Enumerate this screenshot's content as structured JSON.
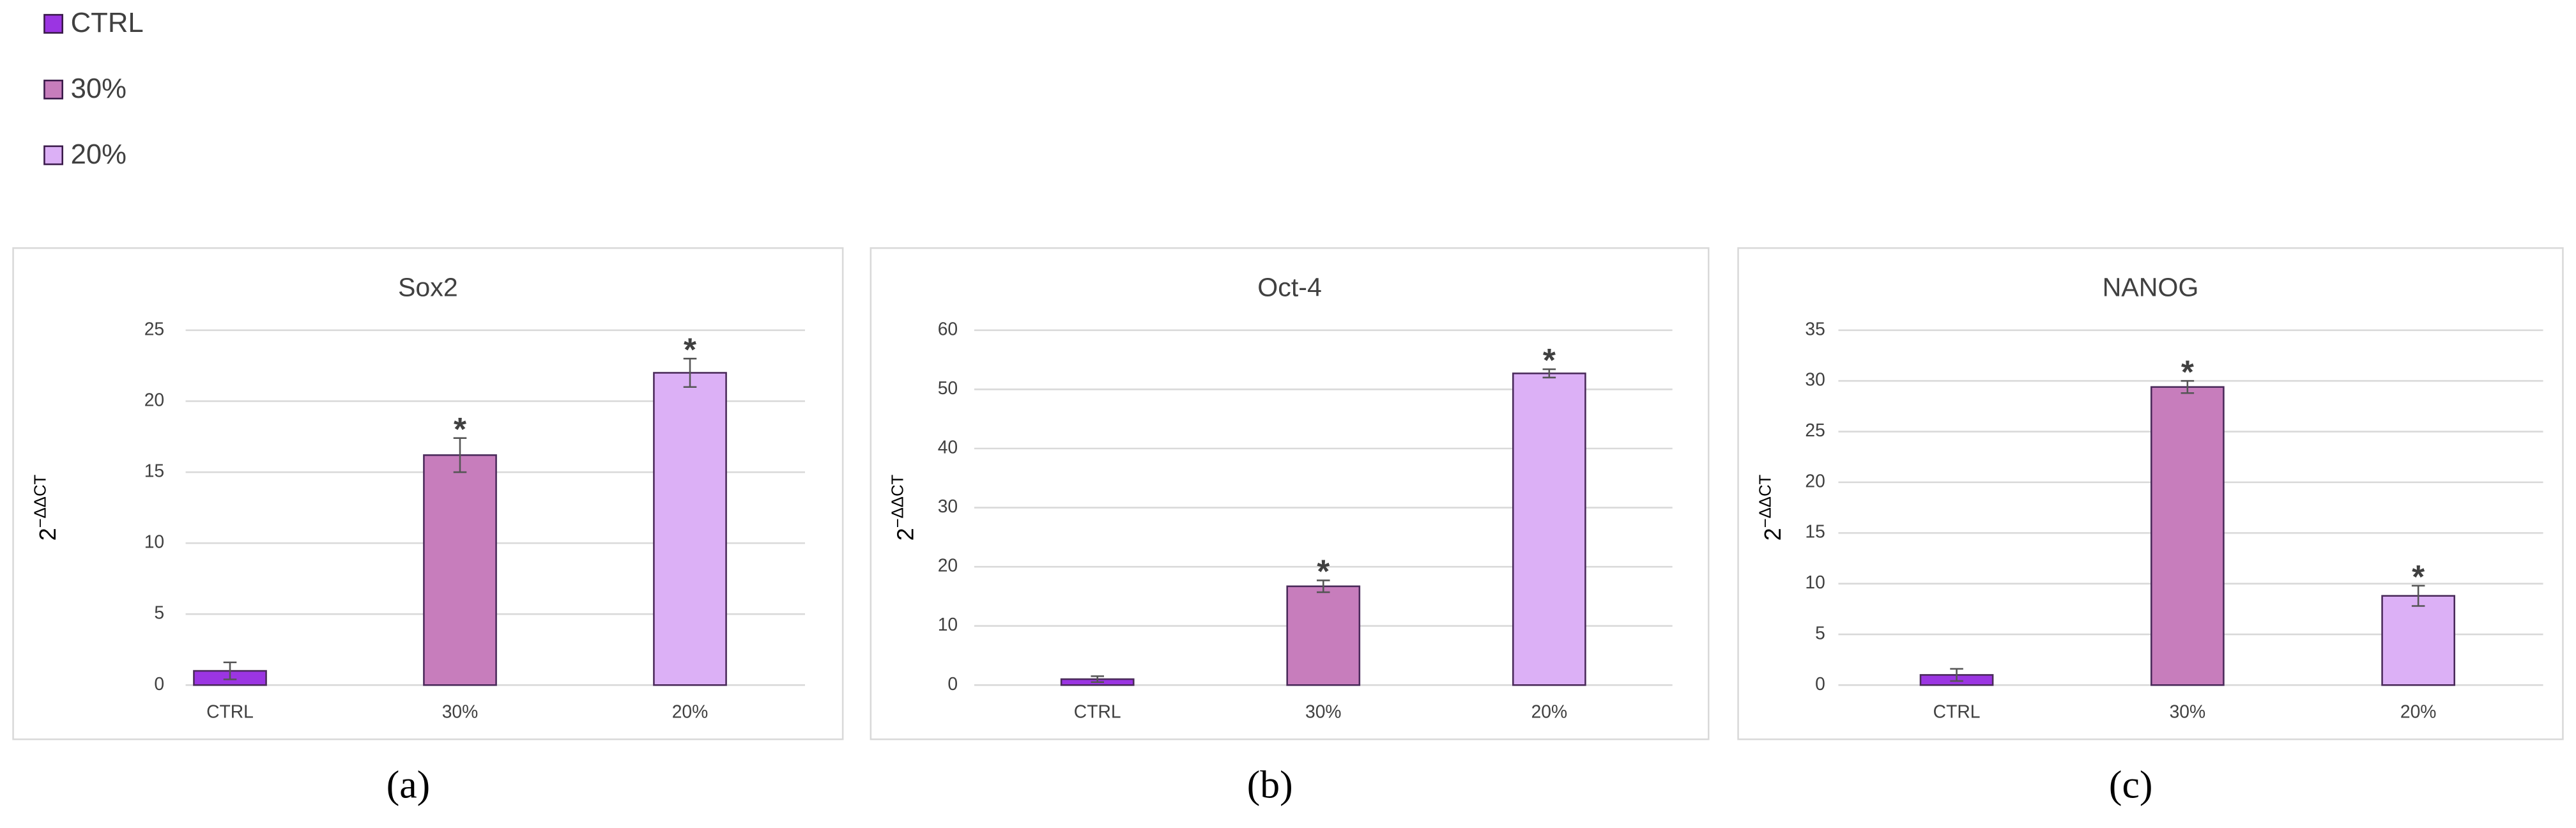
{
  "legend": [
    {
      "name": "CTRL",
      "color": "#9b35e2"
    },
    {
      "name": "30%",
      "color": "#c77dbc"
    },
    {
      "name": "20%",
      "color": "#dcb0f6"
    }
  ],
  "chart_data": [
    {
      "type": "bar",
      "title": "Sox2",
      "y_label": "2",
      "y_label_sup": "−ΔΔCT",
      "categories": [
        "CTRL",
        "30%",
        "20%"
      ],
      "values": [
        1,
        16.2,
        22
      ],
      "errors": [
        0.6,
        1.2,
        1
      ],
      "annotations": [
        null,
        "*",
        "*"
      ],
      "ylim": [
        0,
        25
      ],
      "yticks": [
        0,
        5,
        10,
        15,
        20,
        25
      ],
      "grid": true,
      "panel_label": "(a)"
    },
    {
      "type": "bar",
      "title": "Oct-4",
      "y_label": "2",
      "y_label_sup": "−ΔΔCT",
      "categories": [
        "CTRL",
        "30%",
        "20%"
      ],
      "values": [
        1,
        16.7,
        52.7
      ],
      "errors": [
        0.5,
        1,
        0.7
      ],
      "annotations": [
        null,
        "*",
        "*"
      ],
      "ylim": [
        0,
        60
      ],
      "yticks": [
        0,
        10,
        20,
        30,
        40,
        50,
        60
      ],
      "grid": true,
      "panel_label": "(b)"
    },
    {
      "type": "bar",
      "title": "NANOG",
      "y_label": "2",
      "y_label_sup": "−ΔΔCT",
      "categories": [
        "CTRL",
        "30%",
        "20%"
      ],
      "values": [
        1,
        29.4,
        8.8
      ],
      "errors": [
        0.6,
        0.6,
        1
      ],
      "annotations": [
        null,
        "*",
        "*"
      ],
      "ylim": [
        0,
        35
      ],
      "yticks": [
        0,
        5,
        10,
        15,
        20,
        25,
        30,
        35
      ],
      "grid": true,
      "panel_label": "(c)"
    }
  ]
}
